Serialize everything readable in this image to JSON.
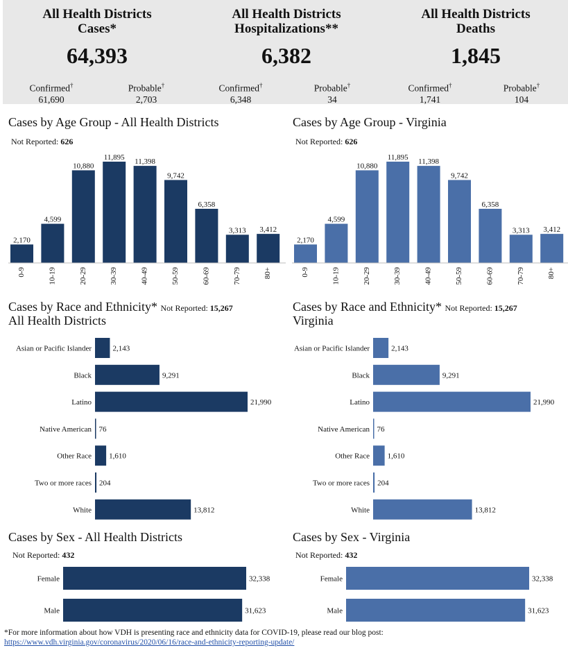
{
  "summary": [
    {
      "title_line1": "All Health Districts",
      "title_line2": "Cases*",
      "total": "64,393",
      "confirmed_label": "Confirmed",
      "confirmed_value": "61,690",
      "probable_label": "Probable",
      "probable_value": "2,703"
    },
    {
      "title_line1": "All Health Districts",
      "title_line2": "Hospitalizations**",
      "total": "6,382",
      "confirmed_label": "Confirmed",
      "confirmed_value": "6,348",
      "probable_label": "Probable",
      "probable_value": "34"
    },
    {
      "title_line1": "All Health Districts",
      "title_line2": "Deaths",
      "total": "1,845",
      "confirmed_label": "Confirmed",
      "confirmed_value": "1,741",
      "probable_label": "Probable",
      "probable_value": "104"
    }
  ],
  "dagger": "†",
  "not_reported_label": "Not Reported:",
  "footer": {
    "note": "*For more information about how VDH is presenting race and ethnicity data for COVID-19, please read our blog post:",
    "link": "https://www.vdh.virginia.gov/coronavirus/2020/06/16/race-and-ethnicity-reporting-update/"
  },
  "colors": {
    "dark": "#1b3a63",
    "light": "#4a6fa8"
  },
  "chart_data": [
    {
      "id": "age_all",
      "type": "bar",
      "title": "Cases by Age Group - All Health Districts",
      "not_reported": "626",
      "categories": [
        "0-9",
        "10-19",
        "20-29",
        "30-39",
        "40-49",
        "50-59",
        "60-69",
        "70-79",
        "80+"
      ],
      "values": [
        2170,
        4599,
        10880,
        11895,
        11398,
        9742,
        6358,
        3313,
        3412
      ],
      "labels": [
        "2,170",
        "4,599",
        "10,880",
        "11,895",
        "11,398",
        "9,742",
        "6,358",
        "3,313",
        "3,412"
      ],
      "ylim": [
        0,
        11895
      ],
      "color": "#1b3a63"
    },
    {
      "id": "age_va",
      "type": "bar",
      "title": "Cases by Age Group - Virginia",
      "not_reported": "626",
      "categories": [
        "0-9",
        "10-19",
        "20-29",
        "30-39",
        "40-49",
        "50-59",
        "60-69",
        "70-79",
        "80+"
      ],
      "values": [
        2170,
        4599,
        10880,
        11895,
        11398,
        9742,
        6358,
        3313,
        3412
      ],
      "labels": [
        "2,170",
        "4,599",
        "10,880",
        "11,895",
        "11,398",
        "9,742",
        "6,358",
        "3,313",
        "3,412"
      ],
      "ylim": [
        0,
        11895
      ],
      "color": "#4a6fa8"
    },
    {
      "id": "race_all",
      "type": "bar",
      "orientation": "horizontal",
      "title": "Cases by Race and Ethnicity*",
      "subtitle": "All Health Districts",
      "not_reported": "15,267",
      "categories": [
        "Asian or Pacific Islander",
        "Black",
        "Latino",
        "Native American",
        "Other Race",
        "Two or more races",
        "White"
      ],
      "values": [
        2143,
        9291,
        21990,
        76,
        1610,
        204,
        13812
      ],
      "labels": [
        "2,143",
        "9,291",
        "21,990",
        "76",
        "1,610",
        "204",
        "13,812"
      ],
      "xlim": [
        0,
        21990
      ],
      "color": "#1b3a63"
    },
    {
      "id": "race_va",
      "type": "bar",
      "orientation": "horizontal",
      "title": "Cases by Race and Ethnicity*",
      "subtitle": "Virginia",
      "not_reported": "15,267",
      "categories": [
        "Asian or Pacific Islander",
        "Black",
        "Latino",
        "Native American",
        "Other Race",
        "Two or more races",
        "White"
      ],
      "values": [
        2143,
        9291,
        21990,
        76,
        1610,
        204,
        13812
      ],
      "labels": [
        "2,143",
        "9,291",
        "21,990",
        "76",
        "1,610",
        "204",
        "13,812"
      ],
      "xlim": [
        0,
        21990
      ],
      "color": "#4a6fa8"
    },
    {
      "id": "sex_all",
      "type": "bar",
      "orientation": "horizontal",
      "title": "Cases by Sex - All Health Districts",
      "not_reported": "432",
      "categories": [
        "Female",
        "Male"
      ],
      "values": [
        32338,
        31623
      ],
      "labels": [
        "32,338",
        "31,623"
      ],
      "xlim": [
        0,
        32338
      ],
      "color": "#1b3a63"
    },
    {
      "id": "sex_va",
      "type": "bar",
      "orientation": "horizontal",
      "title": "Cases by Sex - Virginia",
      "not_reported": "432",
      "categories": [
        "Female",
        "Male"
      ],
      "values": [
        32338,
        31623
      ],
      "labels": [
        "32,338",
        "31,623"
      ],
      "xlim": [
        0,
        32338
      ],
      "color": "#4a6fa8"
    }
  ]
}
